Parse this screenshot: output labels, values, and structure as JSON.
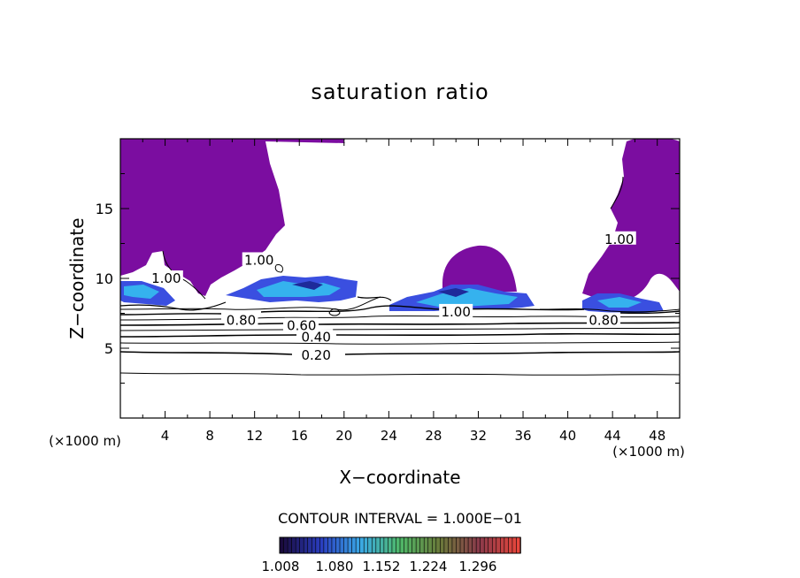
{
  "chart_data": {
    "type": "contour",
    "title": "saturation ratio",
    "xlabel": "X−coordinate",
    "ylabel": "Z−coordinate",
    "x_unit_left": "(×1000 m)",
    "x_unit_right": "(×1000 m)",
    "xlim": [
      0,
      50
    ],
    "ylim": [
      0,
      20
    ],
    "xticks": [
      4,
      8,
      12,
      16,
      20,
      24,
      28,
      32,
      36,
      40,
      44,
      48
    ],
    "yticks": [
      5,
      10,
      15
    ],
    "contour_interval_label": "CONTOUR INTERVAL = 1.000E−01",
    "contour_labels": [
      {
        "text": "0.20",
        "x": 17.5,
        "y": 4.5
      },
      {
        "text": "0.40",
        "x": 17.5,
        "y": 5.8
      },
      {
        "text": "0.60",
        "x": 16.2,
        "y": 6.6
      },
      {
        "text": "0.80",
        "x": 10.8,
        "y": 7.0
      },
      {
        "text": "0.80",
        "x": 43.2,
        "y": 7.0
      },
      {
        "text": "1.00",
        "x": 12.4,
        "y": 11.3
      },
      {
        "text": "1.00",
        "x": 30.0,
        "y": 7.6
      },
      {
        "text": "1.00",
        "x": 44.6,
        "y": 12.8
      },
      {
        "text": "1.00",
        "x": 4.1,
        "y": 10.0
      }
    ],
    "colorbar": {
      "ticks": [
        "1.008",
        "1.080",
        "1.152",
        "1.224",
        "1.296"
      ],
      "colors": [
        "#1a0b3d",
        "#2a3dbf",
        "#3aa8e6",
        "#4fb868",
        "#6a7a3a",
        "#8a3a4a",
        "#e8463c"
      ]
    },
    "fill_colors": {
      "supersaturated": "#7b0da0",
      "cloud_low": "#3a4fe0",
      "cloud_mid": "#35b2ee",
      "cloud_high": "#1e2a9a"
    }
  }
}
